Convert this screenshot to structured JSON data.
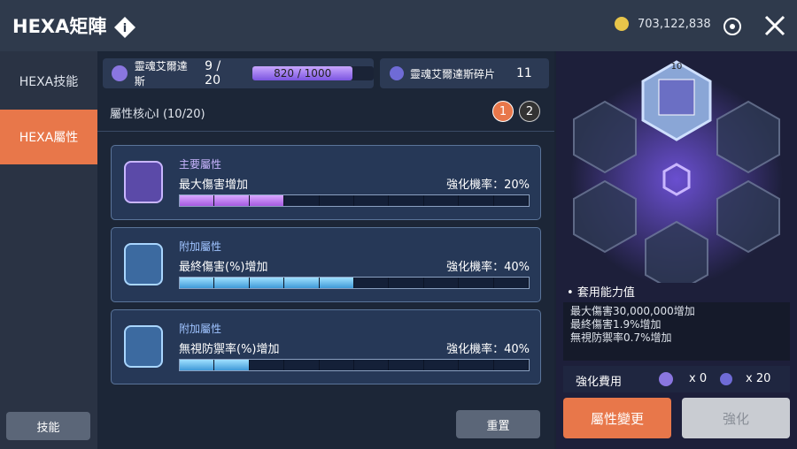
{
  "header": {
    "title": "HEXA矩陣",
    "currency": "703,122,838"
  },
  "sidebar": {
    "tabs": [
      "HEXA技能",
      "HEXA屬性"
    ],
    "skill_button": "技能"
  },
  "resources": [
    {
      "name": "靈魂艾爾達斯",
      "count": "9 / 20",
      "progress": "820 / 1000"
    },
    {
      "name": "靈魂艾爾達斯碎片",
      "count": "11"
    }
  ],
  "core": {
    "title": "屬性核心I (10/20)",
    "pages": [
      "1",
      "2"
    ]
  },
  "stats": [
    {
      "label": "主要屬性",
      "name": "最大傷害增加",
      "chance": "強化機率：20%",
      "filled": 3
    },
    {
      "label": "附加屬性",
      "name": "最終傷害(%)增加",
      "chance": "強化機率：40%",
      "filled": 5
    },
    {
      "label": "附加屬性",
      "name": "無視防禦率(%)增加",
      "chance": "強化機率：40%",
      "filled": 2
    }
  ],
  "reset": "重置",
  "hex": {
    "level": "10"
  },
  "applied": {
    "title": "套用能力值",
    "lines": [
      "最大傷害30,000,000增加",
      "最終傷害1.9%增加",
      "無視防禦率0.7%增加"
    ]
  },
  "cost": {
    "label": "強化費用",
    "items": [
      "x 0",
      "x 20"
    ]
  },
  "buttons": [
    "屬性變更",
    "強化"
  ]
}
